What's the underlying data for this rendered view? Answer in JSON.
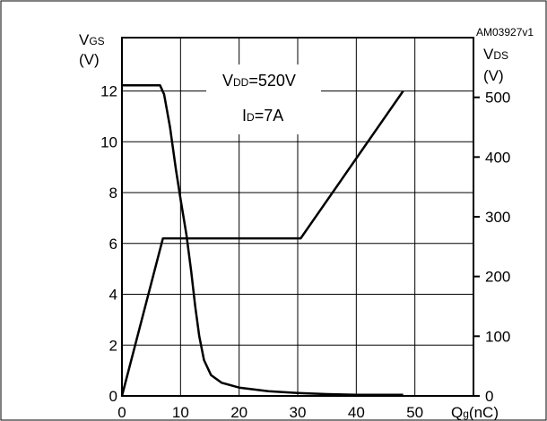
{
  "chart_data": {
    "type": "line",
    "id_label": "AM03927v1",
    "annotations": {
      "vdd": {
        "main": "V",
        "sub": "DD",
        "rest": "=520V"
      },
      "id": {
        "main": "I",
        "sub": "D",
        "rest": "=7A"
      }
    },
    "x_axis": {
      "label_main": "Q",
      "label_sub": "g",
      "label_rest": "(nC)",
      "ticks": [
        0,
        10,
        20,
        30,
        40,
        50
      ],
      "range": [
        0,
        60
      ]
    },
    "y_left": {
      "label_main": "V",
      "label_sub": "GS",
      "unit": "(V)",
      "ticks": [
        0,
        2,
        4,
        6,
        8,
        10,
        12
      ],
      "range": [
        0,
        14.1
      ]
    },
    "y_right": {
      "label_main": "V",
      "label_sub": "DS",
      "unit": "(V)",
      "ticks": [
        0,
        100,
        200,
        300,
        400,
        500
      ],
      "range": [
        0,
        600
      ]
    },
    "grid": true,
    "series": [
      {
        "axis": "left",
        "points": [
          [
            0,
            0
          ],
          [
            7,
            6.2
          ],
          [
            30.5,
            6.2
          ],
          [
            48,
            12
          ]
        ]
      },
      {
        "axis": "right",
        "points": [
          [
            0,
            520
          ],
          [
            6.5,
            520
          ],
          [
            7.2,
            505
          ],
          [
            8.2,
            450
          ],
          [
            9.2,
            380
          ],
          [
            10,
            330
          ],
          [
            11,
            270
          ],
          [
            11.8,
            210
          ],
          [
            12.5,
            150
          ],
          [
            13.2,
            100
          ],
          [
            14,
            60
          ],
          [
            15.2,
            35
          ],
          [
            17,
            22
          ],
          [
            20,
            14
          ],
          [
            25,
            8
          ],
          [
            30,
            5
          ],
          [
            35,
            3
          ],
          [
            40,
            2
          ],
          [
            48,
            2
          ]
        ]
      }
    ]
  }
}
